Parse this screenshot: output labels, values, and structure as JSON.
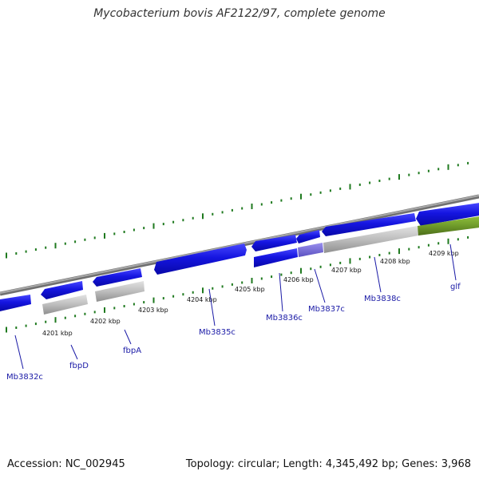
{
  "title": "Mycobacterium bovis AF2122/97, complete genome",
  "footer": {
    "accession": "Accession: NC_002945",
    "summary": "Topology: circular; Length: 4,345,492 bp; Genes: 3,968"
  },
  "kbp_labels": [
    "4201 kbp",
    "4202 kbp",
    "4203 kbp",
    "4204 kbp",
    "4205 kbp",
    "4206 kbp",
    "4207 kbp",
    "4208 kbp",
    "4209 kbp"
  ],
  "gene_labels": [
    "Mb3832c",
    "fbpD",
    "fbpA",
    "Mb3835c",
    "Mb3836c",
    "Mb3837c",
    "Mb3838c",
    "glf"
  ],
  "colors": {
    "cds": "#1515e0",
    "gene": "#bdbdbd",
    "glf_gene": "#6e9a2a",
    "selected_cds": "#7a6fd6",
    "tick": "#1f7a1f",
    "backbone": "#8c8c8c",
    "label": "#1a1aa6"
  }
}
